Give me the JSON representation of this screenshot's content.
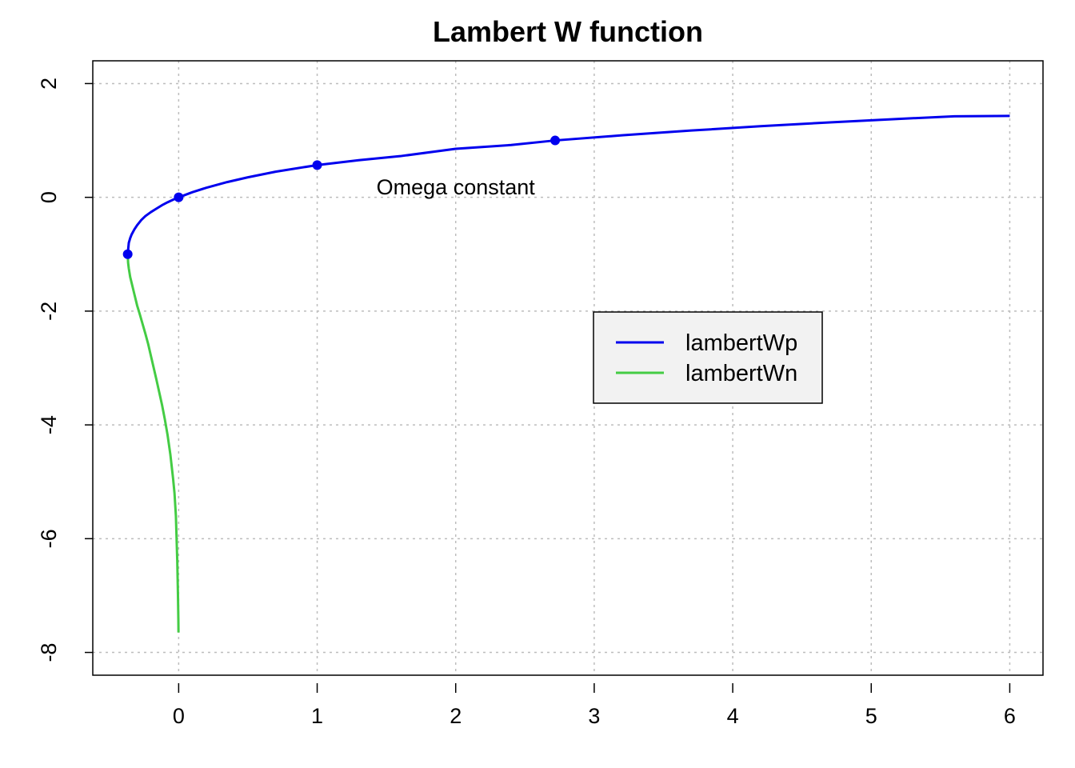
{
  "chart_data": {
    "type": "line",
    "title": "Lambert W function",
    "xlabel": "",
    "ylabel": "",
    "xlim": [
      -0.62,
      6.24
    ],
    "ylim": [
      -8.4,
      2.4
    ],
    "x_ticks": [
      0,
      1,
      2,
      3,
      4,
      5,
      6
    ],
    "y_ticks": [
      2,
      0,
      -2,
      -4,
      -6,
      -8
    ],
    "grid": true,
    "legend_position": "center-right",
    "series": [
      {
        "name": "lambertWp",
        "color": "#0000ee",
        "x": [
          -0.3679,
          -0.36,
          -0.35,
          -0.34,
          -0.32,
          -0.3,
          -0.27,
          -0.24,
          -0.2,
          -0.16,
          -0.12,
          -0.08,
          -0.04,
          0,
          0.1,
          0.2,
          0.35,
          0.5,
          0.7,
          1.0,
          1.3,
          1.6,
          2.0,
          2.4,
          2.718,
          3.2,
          3.7,
          4.2,
          4.7,
          5.2,
          5.6,
          6.0
        ],
        "y": [
          -1.0,
          -0.8,
          -0.718,
          -0.655,
          -0.565,
          -0.49,
          -0.4,
          -0.329,
          -0.259,
          -0.198,
          -0.138,
          -0.087,
          -0.042,
          0,
          0.091,
          0.169,
          0.268,
          0.352,
          0.451,
          0.567,
          0.653,
          0.724,
          0.853,
          0.92,
          1.0,
          1.09,
          1.174,
          1.25,
          1.317,
          1.379,
          1.424,
          1.432
        ]
      },
      {
        "name": "lambertWn",
        "color": "#44cc44",
        "x": [
          -0.3679,
          -0.365,
          -0.36,
          -0.35,
          -0.34,
          -0.32,
          -0.3,
          -0.28,
          -0.26,
          -0.24,
          -0.22,
          -0.2,
          -0.18,
          -0.16,
          -0.14,
          -0.12,
          -0.1,
          -0.08,
          -0.06,
          -0.04,
          -0.03,
          -0.02,
          -0.01,
          -0.005,
          -0.002,
          -0.0012
        ],
        "y": [
          -1.0,
          -1.15,
          -1.25,
          -1.4,
          -1.5,
          -1.7,
          -1.9,
          -2.06,
          -2.23,
          -2.4,
          -2.58,
          -2.79,
          -3.0,
          -3.21,
          -3.43,
          -3.65,
          -3.9,
          -4.18,
          -4.52,
          -4.95,
          -5.2,
          -5.6,
          -6.4,
          -7.0,
          -7.45,
          -7.65
        ]
      }
    ],
    "points": {
      "color": "#0000ee",
      "x": [
        -0.3679,
        0,
        1,
        2.718
      ],
      "y": [
        -1,
        0,
        0.567,
        1
      ]
    },
    "annotations": [
      {
        "text": "Omega constant",
        "x": 2.0,
        "y": 0.05
      }
    ],
    "legend": {
      "background": "#f2f2f2",
      "entries": [
        {
          "label": "lambertWp",
          "color": "#0000ee"
        },
        {
          "label": "lambertWn",
          "color": "#44cc44"
        }
      ]
    }
  }
}
